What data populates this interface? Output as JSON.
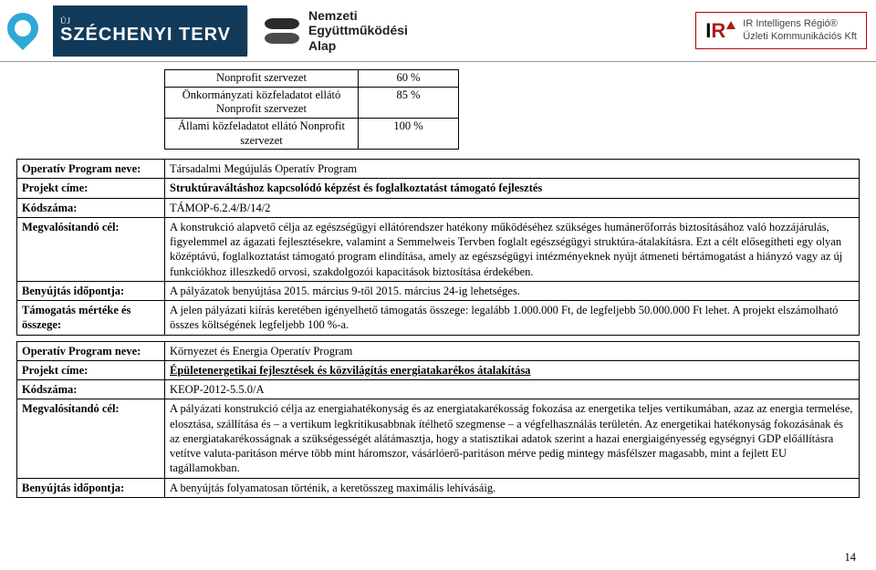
{
  "header": {
    "szechenyi_upper": "ÚJ",
    "szechenyi_main": "SZÉCHENYI TERV",
    "nea_line1": "Nemzeti",
    "nea_line2": "Együttműködési",
    "nea_line3": "Alap",
    "ir_logo_i": "I",
    "ir_logo_r": "R",
    "ir_line1": "IR Intelligens Régió®",
    "ir_line2": "Üzleti Kommunikációs Kft"
  },
  "small_table": {
    "rows": [
      {
        "c1": "Nonprofit szervezet",
        "c2": "60 %"
      },
      {
        "c1": "Önkormányzati közfeladatot ellátó Nonprofit\nszervezet",
        "c2": "85 %"
      },
      {
        "c1": "Állami közfeladatot ellátó Nonprofit\nszervezet",
        "c2": "100 %"
      }
    ]
  },
  "block1": {
    "labels": {
      "op": "Operatív Program neve:",
      "title": "Projekt címe:",
      "code": "Kódszáma:",
      "goal": "Megvalósítandó cél:",
      "deadline": "Benyújtás időpontja:",
      "amount": "Támogatás mértéke és összege:"
    },
    "op": "Társadalmi Megújulás Operatív Program",
    "title": "Struktúraváltáshoz kapcsolódó képzést és foglalkoztatást támogató fejlesztés",
    "code": "TÁMOP-6.2.4/B/14/2",
    "goal": "A konstrukció alapvető célja az egészségügyi ellátórendszer hatékony működéséhez szükséges humánerőforrás biztosításához való hozzájárulás, figyelemmel az ágazati fejlesztésekre, valamint a Semmelweis Tervben foglalt egészségügyi struktúra-átalakításra. Ezt a célt elősegítheti egy olyan középtávú, foglalkoztatást támogató program elindítása, amely az egészségügyi intézményeknek nyújt átmeneti bértámogatást a hiányzó vagy az új funkciókhoz illeszkedő orvosi, szakdolgozói kapacitások biztosítása érdekében.",
    "deadline": "A pályázatok benyújtása 2015. március 9-től 2015. március 24-ig lehetséges.",
    "amount": "A jelen pályázati kiírás keretében igényelhető támogatás összege: legalább 1.000.000 Ft, de legfeljebb 50.000.000 Ft lehet. A projekt elszámolható összes költségének legfeljebb 100 %-a."
  },
  "block2": {
    "labels": {
      "op": "Operatív Program neve:",
      "title": "Projekt címe:",
      "code": "Kódszáma:",
      "goal": "Megvalósítandó cél:",
      "deadline": "Benyújtás időpontja:"
    },
    "op": "Környezet és Energia Operatív Program",
    "title": "Épületenergetikai fejlesztések és közvilágítás energiatakarékos átalakítása",
    "code": "KEOP-2012-5.5.0/A",
    "goal": "A pályázati konstrukció célja az energiahatékonyság és az energiatakarékosság fokozása az energetika teljes vertikumában, azaz az energia termelése, elosztása, szállítása és – a vertikum legkritikusabbnak ítélhető szegmense – a végfelhasználás területén. Az energetikai hatékonyság fokozásának és az energiatakarékosságnak a szükségességét alátámasztja, hogy a statisztikai adatok szerint a hazai energiaigényesség egységnyi GDP előállításra vetítve valuta-paritáson mérve több mint háromszor, vásárlóerő-paritáson mérve pedig mintegy másfélszer magasabb, mint a fejlett EU tagállamokban.",
    "deadline": "A benyújtás folyamatosan történik, a keretösszeg maximális lehívásáig."
  },
  "page_number": "14",
  "colors": {
    "header_bg": "#113a5a",
    "accent_red": "#b31818",
    "border": "#000000"
  }
}
